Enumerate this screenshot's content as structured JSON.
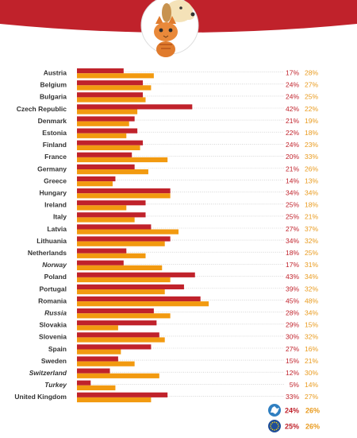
{
  "colors": {
    "header": "#c0222b",
    "series_1": "#c0222b",
    "series_2": "#f29a10",
    "leader": "#bdbdbd",
    "europe_icon": "#2f7fc1",
    "eu_icon": "#1f4e99"
  },
  "icons": {
    "mascot": "dog-and-cat-icon",
    "europe": "europe-map-icon",
    "eu": "eu-flag-icon"
  },
  "chart_data": {
    "type": "bar",
    "orientation": "horizontal",
    "categories": [
      "Austria",
      "Belgium",
      "Bulgaria",
      "Czech Republic",
      "Denmark",
      "Estonia",
      "Finland",
      "France",
      "Germany",
      "Greece",
      "Hungary",
      "Ireland",
      "Italy",
      "Latvia",
      "Lithuania",
      "Netherlands",
      "Norway",
      "Poland",
      "Portugal",
      "Romania",
      "Russia",
      "Slovakia",
      "Slovenia",
      "Spain",
      "Sweden",
      "Switzerland",
      "Turkey",
      "United Kingdom"
    ],
    "italic_categories": [
      "Norway",
      "Russia",
      "Switzerland",
      "Turkey"
    ],
    "series": [
      {
        "values": [
          17,
          24,
          24,
          42,
          21,
          22,
          24,
          20,
          21,
          14,
          34,
          25,
          25,
          27,
          34,
          18,
          17,
          43,
          39,
          45,
          28,
          29,
          30,
          27,
          15,
          12,
          5,
          33
        ]
      },
      {
        "values": [
          28,
          27,
          25,
          22,
          19,
          18,
          23,
          33,
          26,
          13,
          34,
          18,
          21,
          37,
          32,
          25,
          31,
          34,
          32,
          48,
          34,
          15,
          32,
          16,
          21,
          30,
          14,
          27
        ]
      }
    ],
    "value_suffix": "%",
    "xlim": [
      0,
      50
    ],
    "summary": [
      {
        "icon": "europe-map-icon",
        "value_1": 24,
        "value_2": 26
      },
      {
        "icon": "eu-flag-icon",
        "value_1": 25,
        "value_2": 26
      }
    ]
  }
}
